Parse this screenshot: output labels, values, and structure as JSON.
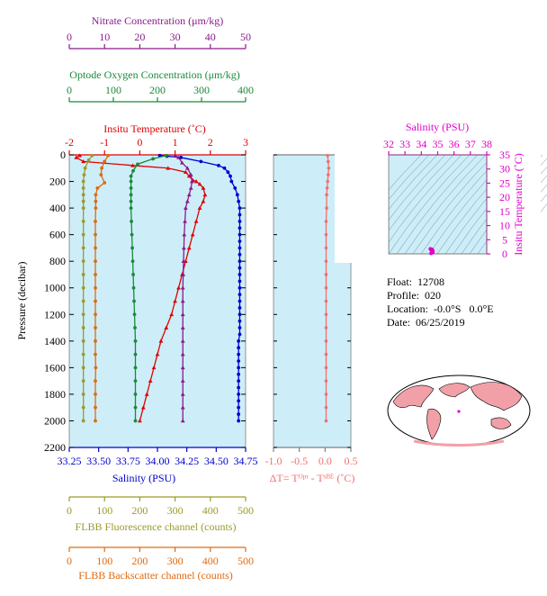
{
  "colors": {
    "nitrate": "#8b1a8b",
    "oxygen": "#1a8a3a",
    "temperature": "#e00000",
    "salinity": "#0000cc",
    "fluorescence": "#9a9a2a",
    "backscatter": "#e06a10",
    "delta": "#f07070",
    "ts": "#e000c8",
    "plot_bg": "#cdeef8",
    "map_land": "#f2a0a8"
  },
  "info": {
    "float": "Float:  12708",
    "profile": "Profile:  020",
    "location": "Location:  -0.0°S   0.0°E",
    "date": "Date:  06/25/2019"
  },
  "chart_data": [
    {
      "type": "line",
      "name": "main-profile",
      "ylabel": "Pressure (decibar)",
      "ylim": [
        2200,
        0
      ],
      "yticks": [
        0,
        200,
        400,
        600,
        800,
        1000,
        1200,
        1400,
        1600,
        1800,
        2000,
        2200
      ],
      "grid": false,
      "axes": {
        "nitrate": {
          "title": "Nitrate Concentration (μm/kg)",
          "range": [
            0,
            50
          ],
          "ticks": [
            0,
            10,
            20,
            30,
            40,
            50
          ]
        },
        "oxygen": {
          "title": "Optode Oxygen Concentration (μm/kg)",
          "range": [
            0,
            400
          ],
          "ticks": [
            0,
            100,
            200,
            300,
            400
          ]
        },
        "temperature": {
          "title": "Insitu Temperature (˚C)",
          "range": [
            -2,
            3
          ],
          "ticks": [
            -2,
            -1,
            0,
            1,
            2,
            3
          ]
        },
        "salinity": {
          "title": "Salinity (PSU)",
          "range": [
            33.25,
            34.75
          ],
          "ticks": [
            "33.25",
            "33.50",
            "33.75",
            "34.00",
            "34.25",
            "34.50",
            "34.75"
          ]
        },
        "fluorescence": {
          "title": "FLBB Fluorescence channel (counts)",
          "range": [
            0,
            500
          ],
          "ticks": [
            0,
            100,
            200,
            300,
            400,
            500
          ]
        },
        "backscatter": {
          "title": "FLBB Backscatter channel (counts)",
          "range": [
            0,
            500
          ],
          "ticks": [
            0,
            100,
            200,
            300,
            400,
            500
          ]
        }
      },
      "series": [
        {
          "name": "Salinity",
          "axis": "salinity",
          "marker": "circle",
          "points": [
            [
              34.02,
              5
            ],
            [
              34.08,
              10
            ],
            [
              34.2,
              20
            ],
            [
              34.37,
              50
            ],
            [
              34.52,
              80
            ],
            [
              34.57,
              100
            ],
            [
              34.6,
              130
            ],
            [
              34.62,
              160
            ],
            [
              34.63,
              200
            ],
            [
              34.66,
              250
            ],
            [
              34.68,
              300
            ],
            [
              34.69,
              350
            ],
            [
              34.7,
              400
            ],
            [
              34.7,
              450
            ],
            [
              34.7,
              500
            ],
            [
              34.7,
              550
            ],
            [
              34.7,
              600
            ],
            [
              34.7,
              650
            ],
            [
              34.7,
              700
            ],
            [
              34.7,
              750
            ],
            [
              34.7,
              800
            ],
            [
              34.7,
              850
            ],
            [
              34.7,
              900
            ],
            [
              34.7,
              950
            ],
            [
              34.7,
              1000
            ],
            [
              34.7,
              1050
            ],
            [
              34.7,
              1100
            ],
            [
              34.7,
              1150
            ],
            [
              34.7,
              1200
            ],
            [
              34.7,
              1250
            ],
            [
              34.7,
              1300
            ],
            [
              34.7,
              1350
            ],
            [
              34.69,
              1400
            ],
            [
              34.69,
              1450
            ],
            [
              34.69,
              1500
            ],
            [
              34.69,
              1550
            ],
            [
              34.69,
              1600
            ],
            [
              34.69,
              1650
            ],
            [
              34.69,
              1700
            ],
            [
              34.69,
              1750
            ],
            [
              34.69,
              1800
            ],
            [
              34.69,
              1850
            ],
            [
              34.69,
              1900
            ],
            [
              34.69,
              1950
            ],
            [
              34.69,
              2000
            ]
          ]
        },
        {
          "name": "Insitu Temperature",
          "axis": "temperature",
          "marker": "triangle",
          "points": [
            [
              -1.7,
              5
            ],
            [
              -1.8,
              20
            ],
            [
              -1.6,
              50
            ],
            [
              -0.2,
              80
            ],
            [
              0.8,
              100
            ],
            [
              1.3,
              130
            ],
            [
              1.4,
              160
            ],
            [
              1.5,
              190
            ],
            [
              1.6,
              200
            ],
            [
              1.7,
              220
            ],
            [
              1.8,
              250
            ],
            [
              1.85,
              300
            ],
            [
              1.8,
              350
            ],
            [
              1.7,
              400
            ],
            [
              1.6,
              500
            ],
            [
              1.5,
              600
            ],
            [
              1.4,
              700
            ],
            [
              1.3,
              800
            ],
            [
              1.2,
              900
            ],
            [
              1.1,
              1000
            ],
            [
              1.0,
              1100
            ],
            [
              0.9,
              1200
            ],
            [
              0.75,
              1300
            ],
            [
              0.6,
              1400
            ],
            [
              0.5,
              1500
            ],
            [
              0.4,
              1600
            ],
            [
              0.3,
              1700
            ],
            [
              0.2,
              1800
            ],
            [
              0.1,
              1900
            ],
            [
              0.0,
              2000
            ]
          ]
        },
        {
          "name": "Optode Oxygen",
          "axis": "oxygen",
          "marker": "circle",
          "points": [
            [
              220,
              5
            ],
            [
              190,
              30
            ],
            [
              155,
              70
            ],
            [
              145,
              120
            ],
            [
              140,
              160
            ],
            [
              140,
              200
            ],
            [
              140,
              250
            ],
            [
              140,
              300
            ],
            [
              140,
              350
            ],
            [
              140,
              400
            ],
            [
              141,
              500
            ],
            [
              142,
              600
            ],
            [
              143,
              700
            ],
            [
              144,
              800
            ],
            [
              145,
              900
            ],
            [
              146,
              1000
            ],
            [
              147,
              1100
            ],
            [
              148,
              1200
            ],
            [
              149,
              1300
            ],
            [
              150,
              1400
            ],
            [
              150,
              1500
            ],
            [
              150,
              1600
            ],
            [
              150,
              1700
            ],
            [
              150,
              1800
            ],
            [
              150,
              1900
            ],
            [
              150,
              2000
            ]
          ]
        },
        {
          "name": "Nitrate",
          "axis": "nitrate",
          "marker": "triangle",
          "points": [
            [
              30,
              5
            ],
            [
              31,
              20
            ],
            [
              32,
              60
            ],
            [
              33.5,
              100
            ],
            [
              34.5,
              150
            ],
            [
              34.8,
              200
            ],
            [
              34.5,
              250
            ],
            [
              34,
              300
            ],
            [
              33.5,
              350
            ],
            [
              33,
              400
            ],
            [
              32.8,
              500
            ],
            [
              32.6,
              600
            ],
            [
              32.5,
              700
            ],
            [
              32.4,
              800
            ],
            [
              32.3,
              900
            ],
            [
              32.2,
              1000
            ],
            [
              32.2,
              1100
            ],
            [
              32.2,
              1200
            ],
            [
              32.2,
              1300
            ],
            [
              32.2,
              1400
            ],
            [
              32.2,
              1500
            ],
            [
              32.2,
              1600
            ],
            [
              32.2,
              1700
            ],
            [
              32.2,
              1800
            ],
            [
              32.2,
              1900
            ],
            [
              32.2,
              2000
            ]
          ]
        },
        {
          "name": "FLBB Fluorescence",
          "axis": "fluorescence",
          "marker": "circle",
          "points": [
            [
              65,
              5
            ],
            [
              55,
              40
            ],
            [
              45,
              100
            ],
            [
              42,
              150
            ],
            [
              40,
              200
            ],
            [
              40,
              250
            ],
            [
              40,
              300
            ],
            [
              40,
              350
            ],
            [
              40,
              400
            ],
            [
              40,
              500
            ],
            [
              40,
              600
            ],
            [
              40,
              700
            ],
            [
              40,
              800
            ],
            [
              40,
              900
            ],
            [
              40,
              1000
            ],
            [
              40,
              1100
            ],
            [
              40,
              1200
            ],
            [
              40,
              1300
            ],
            [
              40,
              1400
            ],
            [
              40,
              1500
            ],
            [
              40,
              1600
            ],
            [
              40,
              1700
            ],
            [
              40,
              1800
            ],
            [
              40,
              1900
            ],
            [
              40,
              2000
            ]
          ]
        },
        {
          "name": "FLBB Backscatter",
          "axis": "backscatter",
          "marker": "circle",
          "points": [
            [
              110,
              5
            ],
            [
              100,
              50
            ],
            [
              92,
              100
            ],
            [
              90,
              150
            ],
            [
              100,
              210
            ],
            [
              80,
              250
            ],
            [
              75,
              300
            ],
            [
              75,
              350
            ],
            [
              75,
              400
            ],
            [
              74,
              500
            ],
            [
              74,
              600
            ],
            [
              74,
              700
            ],
            [
              74,
              800
            ],
            [
              74,
              900
            ],
            [
              74,
              1000
            ],
            [
              74,
              1100
            ],
            [
              74,
              1200
            ],
            [
              74,
              1300
            ],
            [
              74,
              1400
            ],
            [
              74,
              1500
            ],
            [
              75,
              1600
            ],
            [
              74,
              1700
            ],
            [
              74,
              1800
            ],
            [
              74,
              1900
            ],
            [
              74,
              2000
            ]
          ]
        }
      ]
    },
    {
      "type": "line",
      "name": "delta-temperature",
      "xlabel": "ΔT= Tᴼᵖᵗ - Tˢᴮᴱ (˚C)",
      "xlim": [
        -1.0,
        0.5
      ],
      "xticks": [
        "-1.0",
        "-0.5",
        "0.0",
        "0.5"
      ],
      "ylim": [
        2200,
        0
      ],
      "series": [
        {
          "name": "ΔT",
          "points": [
            [
              0.05,
              5
            ],
            [
              0.06,
              50
            ],
            [
              0.07,
              100
            ],
            [
              0.06,
              150
            ],
            [
              0.05,
              200
            ],
            [
              0.04,
              250
            ],
            [
              0.03,
              300
            ],
            [
              0.03,
              400
            ],
            [
              0.02,
              500
            ],
            [
              0.02,
              600
            ],
            [
              0.02,
              700
            ],
            [
              0.02,
              800
            ],
            [
              0.02,
              900
            ],
            [
              0.02,
              1000
            ],
            [
              0.02,
              1100
            ],
            [
              0.02,
              1200
            ],
            [
              0.02,
              1300
            ],
            [
              0.02,
              1400
            ],
            [
              0.02,
              1500
            ],
            [
              0.02,
              1600
            ],
            [
              0.02,
              1700
            ],
            [
              0.02,
              1800
            ],
            [
              0.02,
              1900
            ],
            [
              0.02,
              2000
            ]
          ]
        }
      ]
    },
    {
      "type": "scatter",
      "name": "ts-diagram",
      "title": "Salinity (PSU)",
      "xlim": [
        32,
        38
      ],
      "xticks": [
        32,
        33,
        34,
        35,
        36,
        37,
        38
      ],
      "ylabel": "Insitu Temperature (˚C)",
      "ylim": [
        0,
        35
      ],
      "yticks": [
        0,
        5,
        10,
        15,
        20,
        25,
        30,
        35
      ],
      "series": [
        {
          "name": "T-S",
          "points": [
            [
              34.6,
              0.2
            ],
            [
              34.7,
              0.5
            ],
            [
              34.7,
              1.0
            ],
            [
              34.6,
              1.4
            ],
            [
              34.65,
              1.6
            ],
            [
              34.55,
              1.8
            ],
            [
              34.7,
              1.2
            ]
          ]
        }
      ]
    }
  ]
}
